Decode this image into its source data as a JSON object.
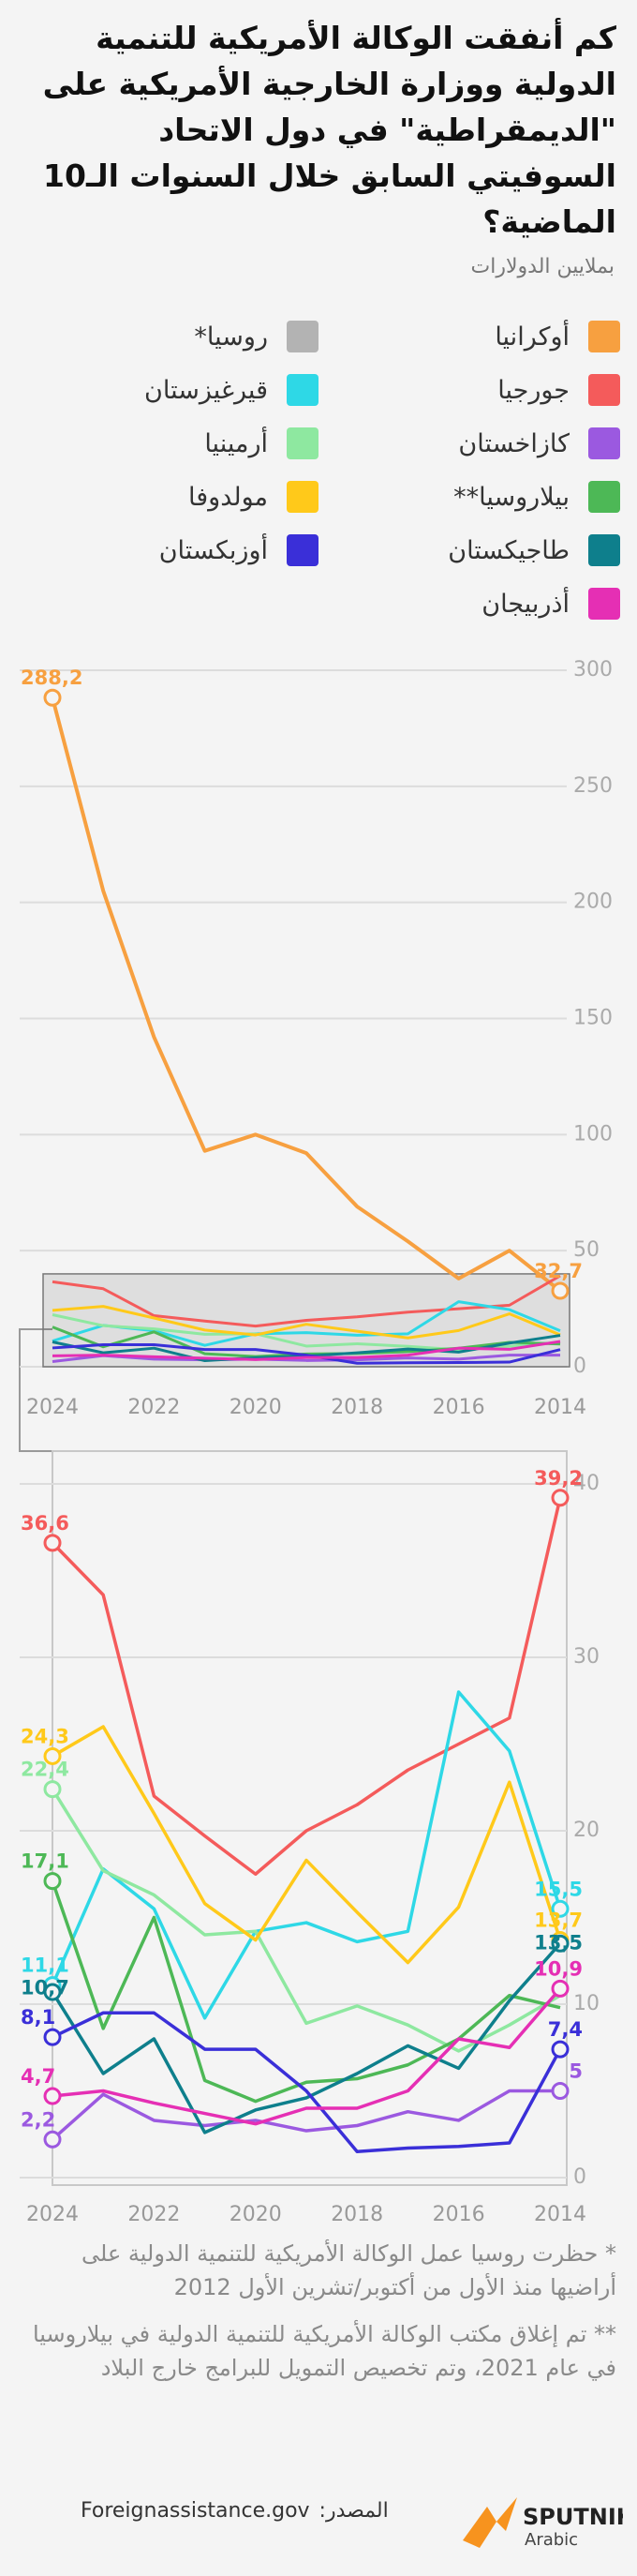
{
  "chart_data": [
    {
      "type": "line",
      "title": "كم أنفقت الوكالة الأمريكية للتنمية الدولية ووزارة الخارجية الأمريكية على \"الديمقراطية\" في دول الاتحاد السوفيتي السابق خلال السنوات الـ10 الماضية؟",
      "subtitle": "بملايين الدولارات",
      "x": [
        2024,
        2023,
        2022,
        2021,
        2020,
        2019,
        2018,
        2017,
        2016,
        2015,
        2014
      ],
      "xlim": [
        2024,
        2014
      ],
      "xticks": [
        2024,
        2022,
        2020,
        2018,
        2016,
        2014
      ],
      "ylim": [
        0,
        300
      ],
      "yticks": [
        0,
        50,
        100,
        150,
        200,
        250,
        300
      ],
      "grid": true,
      "series": [
        {
          "name": "أوكرانيا",
          "color": "#f7a040",
          "values": [
            288.2,
            205,
            142,
            93,
            100,
            92,
            69,
            54,
            38,
            50,
            32.7
          ],
          "value_labels": [
            "288,2",
            null,
            null,
            null,
            null,
            null,
            null,
            null,
            null,
            null,
            "32,7"
          ]
        },
        {
          "name": "روسيا*",
          "color": "#b3b3b3",
          "values": [
            null,
            null,
            null,
            null,
            null,
            null,
            null,
            null,
            null,
            null,
            null
          ]
        },
        {
          "name": "جورجيا",
          "color": "#f45b5b",
          "values": [
            36.6,
            33.6,
            22,
            19.7,
            17.5,
            20,
            21.5,
            23.5,
            25,
            26.5,
            39.2
          ]
        },
        {
          "name": "قيرغيزستان",
          "color": "#2ed8e6",
          "values": [
            11.1,
            17.8,
            15.5,
            9.2,
            14.2,
            14.7,
            13.6,
            14.2,
            28,
            24.6,
            15.5
          ]
        },
        {
          "name": "كازاخستان",
          "color": "#9b59e0",
          "values": [
            2.2,
            4.8,
            3.3,
            3,
            3.3,
            2.7,
            3,
            3.8,
            3.3,
            5,
            5
          ]
        },
        {
          "name": "أرمينيا",
          "color": "#8ee8a0",
          "values": [
            22.4,
            17.7,
            16.3,
            14,
            14.2,
            8.9,
            9.9,
            8.8,
            7.3,
            8.8,
            10.5
          ]
        },
        {
          "name": "بيلاروسيا**",
          "color": "#4db856",
          "values": [
            17.1,
            8.6,
            15,
            5.6,
            4.4,
            5.5,
            5.7,
            6.5,
            8,
            10.5,
            9.8
          ]
        },
        {
          "name": "مولدوفا",
          "color": "#ffc91a",
          "values": [
            24.3,
            26,
            21,
            15.8,
            13.7,
            18.3,
            15.3,
            12.4,
            15.6,
            22.8,
            13.7
          ]
        },
        {
          "name": "طاجيكستان",
          "color": "#0e7f8c",
          "values": [
            10.7,
            6,
            8,
            2.6,
            3.9,
            4.6,
            6,
            7.6,
            6.3,
            10.2,
            13.5
          ]
        },
        {
          "name": "أوزبكستان",
          "color": "#3a2fd8",
          "values": [
            8.1,
            9.5,
            9.5,
            7.4,
            7.4,
            5,
            1.5,
            1.7,
            1.8,
            2,
            7.4
          ]
        },
        {
          "name": "أذربيجان",
          "color": "#e52fb4",
          "values": [
            4.7,
            5,
            4.3,
            3.7,
            3.1,
            4,
            4,
            5,
            8,
            7.5,
            10.9
          ]
        }
      ]
    },
    {
      "type": "line",
      "x": [
        2024,
        2023,
        2022,
        2021,
        2020,
        2019,
        2018,
        2017,
        2016,
        2015,
        2014
      ],
      "xlim": [
        2024,
        2014
      ],
      "xticks": [
        2024,
        2022,
        2020,
        2018,
        2016,
        2014
      ],
      "ylim": [
        0,
        40
      ],
      "yticks": [
        0,
        10,
        20,
        30,
        40
      ],
      "grid": true,
      "series": [
        {
          "color": "#f45b5b",
          "values": [
            36.6,
            33.6,
            22,
            19.7,
            17.5,
            20,
            21.5,
            23.5,
            25,
            26.5,
            39.2
          ],
          "value_labels": [
            "36,6",
            null,
            null,
            null,
            null,
            null,
            null,
            null,
            null,
            null,
            "39,2"
          ]
        },
        {
          "color": "#2ed8e6",
          "values": [
            11.1,
            17.8,
            15.5,
            9.2,
            14.2,
            14.7,
            13.6,
            14.2,
            28,
            24.6,
            15.5
          ],
          "value_labels": [
            "11,1",
            null,
            null,
            null,
            null,
            null,
            null,
            null,
            null,
            null,
            "15,5"
          ]
        },
        {
          "color": "#9b59e0",
          "values": [
            2.2,
            4.8,
            3.3,
            3,
            3.3,
            2.7,
            3,
            3.8,
            3.3,
            5,
            5
          ],
          "value_labels": [
            "2,2",
            null,
            null,
            null,
            null,
            null,
            null,
            null,
            null,
            null,
            "5"
          ]
        },
        {
          "color": "#8ee8a0",
          "values": [
            22.4,
            17.7,
            16.3,
            14,
            14.2,
            8.9,
            9.9,
            8.8,
            7.3,
            8.8,
            10.5
          ],
          "value_labels": [
            "22,4",
            null,
            null,
            null,
            null,
            null,
            null,
            null,
            null,
            null,
            null
          ]
        },
        {
          "color": "#4db856",
          "values": [
            17.1,
            8.6,
            15,
            5.6,
            4.4,
            5.5,
            5.7,
            6.5,
            8,
            10.5,
            9.8
          ],
          "value_labels": [
            "17,1",
            null,
            null,
            null,
            null,
            null,
            null,
            null,
            null,
            null,
            null
          ]
        },
        {
          "color": "#ffc91a",
          "values": [
            24.3,
            26,
            21,
            15.8,
            13.7,
            18.3,
            15.3,
            12.4,
            15.6,
            22.8,
            13.7
          ],
          "value_labels": [
            "24,3",
            null,
            null,
            null,
            null,
            null,
            null,
            null,
            null,
            null,
            "13,7"
          ]
        },
        {
          "color": "#0e7f8c",
          "values": [
            10.7,
            6,
            8,
            2.6,
            3.9,
            4.6,
            6,
            7.6,
            6.3,
            10.2,
            13.5
          ],
          "value_labels": [
            "10,7",
            null,
            null,
            null,
            null,
            null,
            null,
            null,
            null,
            null,
            "13,5"
          ]
        },
        {
          "color": "#3a2fd8",
          "values": [
            8.1,
            9.5,
            9.5,
            7.4,
            7.4,
            5,
            1.5,
            1.7,
            1.8,
            2,
            7.4
          ],
          "value_labels": [
            "8,1",
            null,
            null,
            null,
            null,
            null,
            null,
            null,
            null,
            null,
            "7,4"
          ]
        },
        {
          "color": "#e52fb4",
          "values": [
            4.7,
            5,
            4.3,
            3.7,
            3.1,
            4,
            4,
            5,
            8,
            7.5,
            10.9
          ],
          "value_labels": [
            "4,7",
            null,
            null,
            null,
            null,
            null,
            null,
            null,
            null,
            null,
            "10,9"
          ]
        }
      ]
    }
  ],
  "notes": [
    "* حظرت روسيا عمل الوكالة الأمريكية للتنمية الدولية على أراضيها منذ الأول من أكتوبر/تشرين الأول 2012",
    "** تم إغلاق مكتب الوكالة الأمريكية للتنمية الدولية في بيلاروسيا في عام 2021، وتم تخصيص التمويل للبرامج خارج البلاد"
  ],
  "source_label": "المصدر:",
  "source": "Foreignassistance.gov",
  "brand": {
    "name": "SPUTNIK",
    "sub": "Arabic"
  }
}
